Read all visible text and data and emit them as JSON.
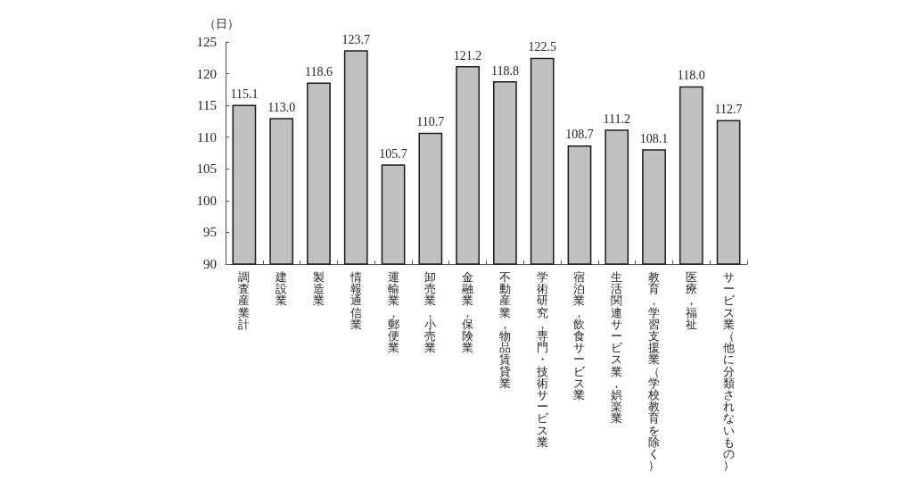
{
  "chart_data": {
    "type": "bar",
    "ylabel": "（日）",
    "categories": [
      "調査産業計",
      "建設業",
      "製造業",
      "情報通信業",
      "運輸業，郵便業",
      "卸売業，小売業",
      "金融業，保険業",
      "不動産業，物品賃貸業",
      "学術研究，専門・技術サービス業",
      "宿泊業，飲食サービス業",
      "生活関連サービス業，娯楽業",
      "教育，学習支援業（学校教育を除く）",
      "医療，福祉",
      "サービス業（他に分類されないもの）"
    ],
    "values": [
      115.1,
      113.0,
      118.6,
      123.7,
      105.7,
      110.7,
      121.2,
      118.8,
      122.5,
      108.7,
      111.2,
      108.1,
      118.0,
      112.7
    ],
    "value_labels": [
      "115.1",
      "113.0",
      "118.6",
      "123.7",
      "105.7",
      "110.7",
      "121.2",
      "118.8",
      "122.5",
      "108.7",
      "111.2",
      "108.1",
      "118.0",
      "112.7"
    ],
    "color": "#c0c0c0",
    "ylim": [
      90,
      125
    ],
    "yticks": [
      90,
      95,
      100,
      105,
      110,
      115,
      120,
      125
    ]
  }
}
